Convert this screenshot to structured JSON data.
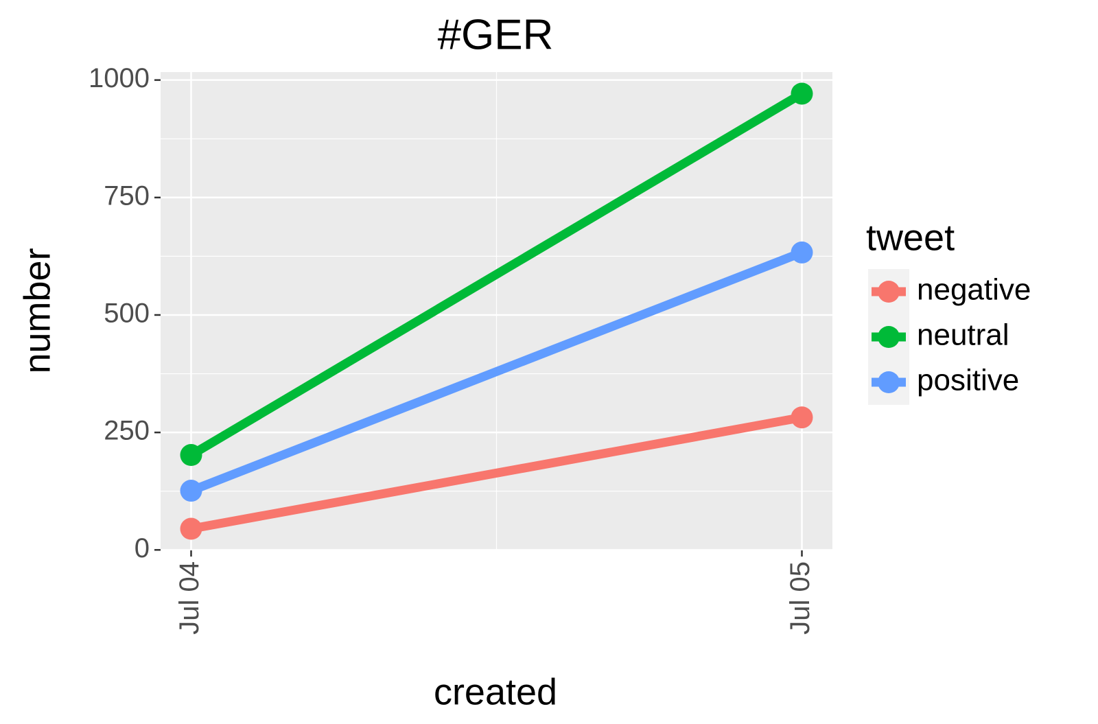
{
  "chart_data": {
    "type": "line",
    "title": "#GER",
    "x_label": "created",
    "y_label": "number",
    "categories": [
      "Jul 04",
      "Jul 05"
    ],
    "series": [
      {
        "name": "negative",
        "color": "#F8766D",
        "values": [
          45,
          282
        ]
      },
      {
        "name": "neutral",
        "color": "#00BA38",
        "values": [
          202,
          971
        ]
      },
      {
        "name": "positive",
        "color": "#619CFF",
        "values": [
          126,
          633
        ]
      }
    ],
    "ylim": [
      -1,
      1017
    ],
    "yticks": [
      0,
      250,
      500,
      750,
      1000
    ],
    "legend_title": "tweet",
    "legend_position": "right",
    "grid": true
  }
}
